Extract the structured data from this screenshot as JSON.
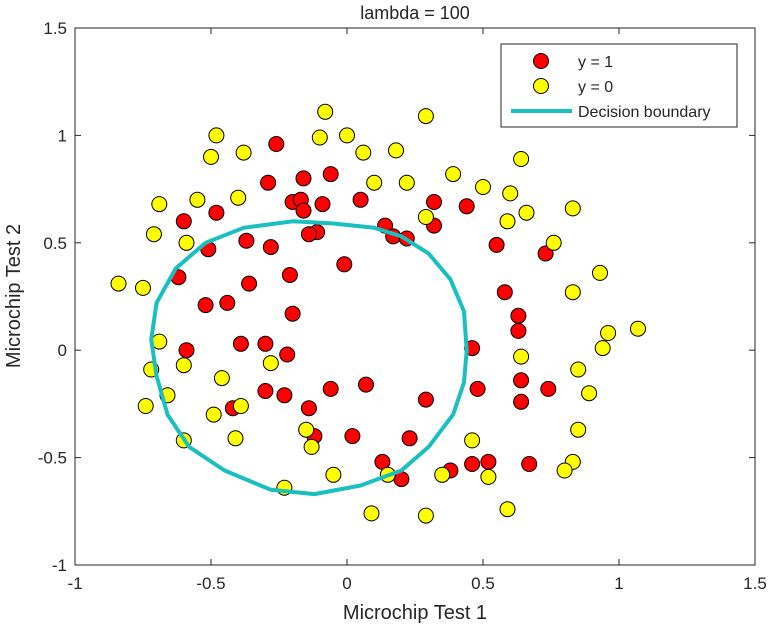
{
  "chart_data": {
    "type": "scatter",
    "title": "lambda = 100",
    "xlabel": "Microchip Test 1",
    "ylabel": "Microchip Test 2",
    "xlim": [
      -1,
      1.5
    ],
    "ylim": [
      -1,
      1.5
    ],
    "xticks": [
      -1,
      -0.5,
      0,
      0.5,
      1,
      1.5
    ],
    "yticks": [
      -1,
      -0.5,
      0,
      0.5,
      1,
      1.5
    ],
    "xtick_labels": [
      "-1",
      "-0.5",
      "0",
      "0.5",
      "1",
      "1.5"
    ],
    "ytick_labels": [
      "-1",
      "-0.5",
      "0",
      "0.5",
      "1",
      "1.5"
    ],
    "grid": false,
    "legend_position": "top-right",
    "series": [
      {
        "name": "y = 1",
        "color": "#ff0000",
        "marker": "circle",
        "points": [
          [
            -0.26,
            0.96
          ],
          [
            -0.29,
            0.78
          ],
          [
            -0.2,
            0.69
          ],
          [
            -0.16,
            0.8
          ],
          [
            -0.06,
            0.82
          ],
          [
            -0.17,
            0.7
          ],
          [
            -0.16,
            0.65
          ],
          [
            -0.09,
            0.68
          ],
          [
            0.05,
            0.7
          ],
          [
            -0.48,
            0.64
          ],
          [
            -0.6,
            0.6
          ],
          [
            -0.51,
            0.47
          ],
          [
            -0.37,
            0.51
          ],
          [
            -0.28,
            0.48
          ],
          [
            -0.11,
            0.55
          ],
          [
            -0.14,
            0.54
          ],
          [
            0.14,
            0.58
          ],
          [
            0.17,
            0.53
          ],
          [
            0.22,
            0.52
          ],
          [
            0.32,
            0.69
          ],
          [
            0.32,
            0.58
          ],
          [
            0.44,
            0.67
          ],
          [
            0.55,
            0.49
          ],
          [
            0.73,
            0.45
          ],
          [
            -0.62,
            0.34
          ],
          [
            -0.21,
            0.35
          ],
          [
            -0.01,
            0.4
          ],
          [
            -0.36,
            0.31
          ],
          [
            -0.52,
            0.21
          ],
          [
            -0.44,
            0.22
          ],
          [
            -0.2,
            0.17
          ],
          [
            0.58,
            0.27
          ],
          [
            0.63,
            0.16
          ],
          [
            -0.59,
            0.0
          ],
          [
            -0.39,
            0.03
          ],
          [
            -0.3,
            0.03
          ],
          [
            -0.22,
            -0.02
          ],
          [
            0.46,
            0.01
          ],
          [
            0.63,
            0.09
          ],
          [
            0.64,
            -0.14
          ],
          [
            -0.3,
            -0.19
          ],
          [
            -0.23,
            -0.21
          ],
          [
            -0.06,
            -0.18
          ],
          [
            0.07,
            -0.16
          ],
          [
            0.48,
            -0.18
          ],
          [
            0.74,
            -0.18
          ],
          [
            -0.14,
            -0.27
          ],
          [
            -0.42,
            -0.27
          ],
          [
            0.29,
            -0.23
          ],
          [
            0.64,
            -0.24
          ],
          [
            -0.12,
            -0.4
          ],
          [
            0.02,
            -0.4
          ],
          [
            0.23,
            -0.41
          ],
          [
            0.13,
            -0.52
          ],
          [
            0.2,
            -0.6
          ],
          [
            0.38,
            -0.56
          ],
          [
            0.46,
            -0.53
          ],
          [
            0.52,
            -0.52
          ],
          [
            0.67,
            -0.53
          ]
        ]
      },
      {
        "name": "y = 0",
        "color": "#ffff00",
        "marker": "circle",
        "points": [
          [
            -0.08,
            1.11
          ],
          [
            0.29,
            1.09
          ],
          [
            -0.48,
            1.0
          ],
          [
            -0.1,
            0.99
          ],
          [
            0.0,
            1.0
          ],
          [
            -0.5,
            0.9
          ],
          [
            -0.38,
            0.92
          ],
          [
            0.06,
            0.92
          ],
          [
            0.18,
            0.93
          ],
          [
            0.64,
            0.89
          ],
          [
            0.1,
            0.78
          ],
          [
            0.22,
            0.78
          ],
          [
            0.39,
            0.82
          ],
          [
            0.5,
            0.76
          ],
          [
            0.6,
            0.73
          ],
          [
            -0.55,
            0.7
          ],
          [
            -0.4,
            0.71
          ],
          [
            -0.69,
            0.68
          ],
          [
            0.29,
            0.62
          ],
          [
            0.59,
            0.6
          ],
          [
            0.66,
            0.64
          ],
          [
            0.83,
            0.66
          ],
          [
            -0.71,
            0.54
          ],
          [
            -0.59,
            0.5
          ],
          [
            0.76,
            0.5
          ],
          [
            -0.84,
            0.31
          ],
          [
            -0.75,
            0.29
          ],
          [
            0.83,
            0.27
          ],
          [
            0.93,
            0.36
          ],
          [
            1.07,
            0.1
          ],
          [
            0.96,
            0.08
          ],
          [
            -0.69,
            0.04
          ],
          [
            0.94,
            0.01
          ],
          [
            0.64,
            -0.03
          ],
          [
            -0.72,
            -0.09
          ],
          [
            -0.6,
            -0.07
          ],
          [
            -0.28,
            -0.06
          ],
          [
            -0.46,
            -0.13
          ],
          [
            0.85,
            -0.09
          ],
          [
            -0.66,
            -0.21
          ],
          [
            0.89,
            -0.2
          ],
          [
            -0.74,
            -0.26
          ],
          [
            -0.39,
            -0.26
          ],
          [
            -0.49,
            -0.3
          ],
          [
            -0.15,
            -0.37
          ],
          [
            0.46,
            -0.42
          ],
          [
            0.85,
            -0.37
          ],
          [
            -0.6,
            -0.42
          ],
          [
            -0.41,
            -0.41
          ],
          [
            -0.13,
            -0.45
          ],
          [
            -0.05,
            -0.58
          ],
          [
            0.15,
            -0.58
          ],
          [
            0.35,
            -0.58
          ],
          [
            0.52,
            -0.59
          ],
          [
            0.83,
            -0.52
          ],
          [
            0.8,
            -0.56
          ],
          [
            -0.23,
            -0.64
          ],
          [
            0.09,
            -0.76
          ],
          [
            0.29,
            -0.77
          ],
          [
            0.59,
            -0.74
          ]
        ]
      },
      {
        "name": "Decision boundary",
        "color": "#1abfbf",
        "type": "line",
        "points": [
          [
            -0.2,
            0.6
          ],
          [
            -0.05,
            0.59
          ],
          [
            0.1,
            0.57
          ],
          [
            0.2,
            0.53
          ],
          [
            0.3,
            0.45
          ],
          [
            0.38,
            0.33
          ],
          [
            0.43,
            0.18
          ],
          [
            0.44,
            0.0
          ],
          [
            0.43,
            -0.15
          ],
          [
            0.39,
            -0.3
          ],
          [
            0.3,
            -0.45
          ],
          [
            0.2,
            -0.56
          ],
          [
            0.05,
            -0.63
          ],
          [
            -0.12,
            -0.67
          ],
          [
            -0.28,
            -0.65
          ],
          [
            -0.45,
            -0.56
          ],
          [
            -0.58,
            -0.45
          ],
          [
            -0.66,
            -0.3
          ],
          [
            -0.7,
            -0.12
          ],
          [
            -0.72,
            0.05
          ],
          [
            -0.7,
            0.22
          ],
          [
            -0.63,
            0.38
          ],
          [
            -0.52,
            0.5
          ],
          [
            -0.38,
            0.57
          ],
          [
            -0.2,
            0.6
          ]
        ]
      }
    ]
  }
}
